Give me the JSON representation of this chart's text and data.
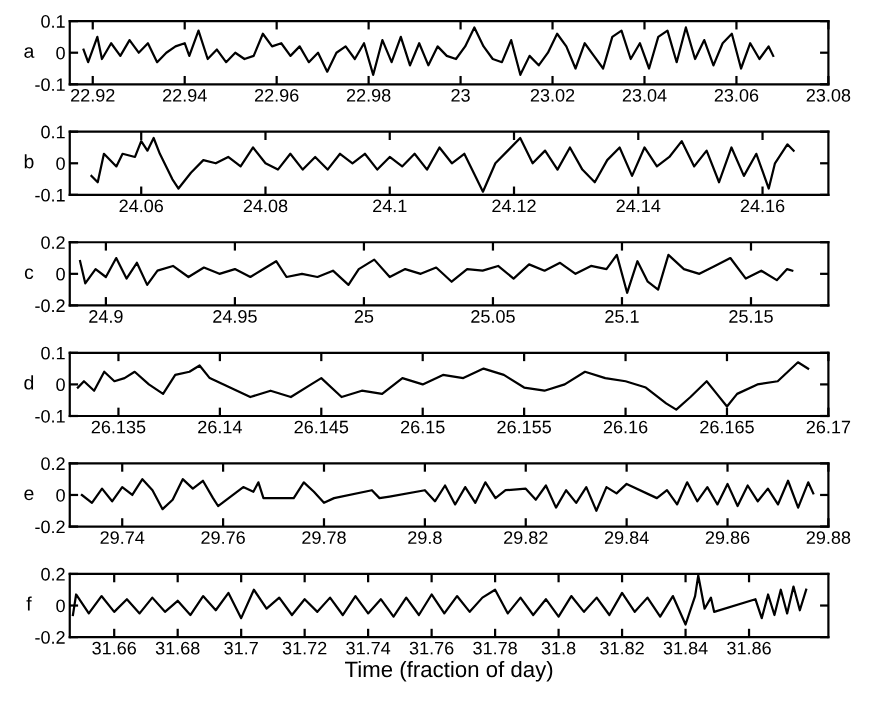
{
  "chart_data": [
    {
      "type": "line",
      "ylabel": "a",
      "xlim": [
        22.915,
        23.08
      ],
      "xticks": [
        22.92,
        22.94,
        22.96,
        22.98,
        23,
        23.02,
        23.04,
        23.06,
        23.08
      ],
      "ylim": [
        -0.1,
        0.1
      ],
      "yticks": [
        -0.1,
        0,
        0.1
      ],
      "series": [
        {
          "color": "#000000",
          "x": [
            22.918,
            22.919,
            22.921,
            22.922,
            22.924,
            22.926,
            22.928,
            22.93,
            22.932,
            22.934,
            22.936,
            22.938,
            22.94,
            22.941,
            22.943,
            22.945,
            22.947,
            22.949,
            22.951,
            22.953,
            22.955,
            22.957,
            22.959,
            22.961,
            22.963,
            22.965,
            22.967,
            22.969,
            22.971,
            22.973,
            22.975,
            22.977,
            22.979,
            22.981,
            22.983,
            22.985,
            22.987,
            22.989,
            22.991,
            22.993,
            22.995,
            22.997,
            22.999,
            23.001,
            23.003,
            23.005,
            23.007,
            23.009,
            23.011,
            23.013,
            23.015,
            23.017,
            23.019,
            23.021,
            23.023,
            23.025,
            23.027,
            23.029,
            23.031,
            23.033,
            23.035,
            23.037,
            23.039,
            23.041,
            23.043,
            23.045,
            23.047,
            23.049,
            23.051,
            23.053,
            23.055,
            23.057,
            23.059,
            23.061,
            23.063,
            23.065,
            23.067,
            23.068
          ],
          "values": [
            0.01,
            -0.03,
            0.05,
            -0.02,
            0.03,
            -0.01,
            0.04,
            0.0,
            0.03,
            -0.03,
            0.0,
            0.02,
            0.03,
            -0.01,
            0.07,
            -0.02,
            0.01,
            -0.03,
            0.0,
            -0.02,
            -0.01,
            0.06,
            0.02,
            0.03,
            -0.01,
            0.02,
            -0.03,
            0.0,
            -0.06,
            0.0,
            0.02,
            -0.02,
            0.03,
            -0.07,
            0.04,
            -0.03,
            0.05,
            -0.04,
            0.03,
            -0.04,
            0.02,
            -0.01,
            -0.02,
            0.02,
            0.08,
            0.02,
            -0.02,
            -0.03,
            0.04,
            -0.07,
            -0.01,
            -0.04,
            0.0,
            0.06,
            0.02,
            -0.05,
            0.03,
            -0.01,
            -0.05,
            0.05,
            0.07,
            -0.02,
            0.03,
            -0.05,
            0.05,
            0.07,
            -0.03,
            0.08,
            -0.02,
            0.04,
            -0.04,
            0.03,
            0.06,
            -0.05,
            0.03,
            -0.02,
            0.02,
            -0.01
          ]
        }
      ]
    },
    {
      "type": "line",
      "ylabel": "b",
      "xlim": [
        24.0485,
        24.1706
      ],
      "xticks": [
        24.06,
        24.08,
        24.1,
        24.12,
        24.14,
        24.16
      ],
      "ylim": [
        -0.1,
        0.1
      ],
      "yticks": [
        -0.1,
        0,
        0.1
      ],
      "series": [
        {
          "color": "#000000",
          "x": [
            24.052,
            24.053,
            24.054,
            24.056,
            24.057,
            24.059,
            24.06,
            24.061,
            24.062,
            24.063,
            24.065,
            24.066,
            24.068,
            24.07,
            24.072,
            24.074,
            24.076,
            24.078,
            24.08,
            24.082,
            24.084,
            24.086,
            24.088,
            24.09,
            24.092,
            24.094,
            24.096,
            24.098,
            24.1,
            24.102,
            24.104,
            24.106,
            24.108,
            24.11,
            24.112,
            24.114,
            24.115,
            24.117,
            24.119,
            24.121,
            24.123,
            24.125,
            24.127,
            24.129,
            24.131,
            24.133,
            24.135,
            24.137,
            24.139,
            24.141,
            24.143,
            24.145,
            24.147,
            24.149,
            24.151,
            24.153,
            24.155,
            24.157,
            24.159,
            24.161,
            24.162,
            24.164,
            24.165
          ],
          "values": [
            -0.04,
            -0.06,
            0.03,
            -0.01,
            0.03,
            0.02,
            0.07,
            0.04,
            0.08,
            0.03,
            -0.05,
            -0.08,
            -0.03,
            0.01,
            0.0,
            0.02,
            -0.01,
            0.05,
            0.0,
            -0.02,
            0.03,
            -0.02,
            0.02,
            -0.02,
            0.03,
            0.0,
            0.03,
            -0.02,
            0.02,
            -0.01,
            0.03,
            -0.02,
            0.05,
            0.0,
            0.03,
            -0.05,
            -0.09,
            0.0,
            0.04,
            0.08,
            0.0,
            0.04,
            -0.02,
            0.05,
            -0.02,
            -0.06,
            0.01,
            0.05,
            -0.04,
            0.05,
            -0.01,
            0.02,
            0.07,
            -0.01,
            0.04,
            -0.06,
            0.05,
            -0.04,
            0.03,
            -0.08,
            0.0,
            0.06,
            0.04
          ]
        }
      ]
    },
    {
      "type": "line",
      "ylabel": "c",
      "xlim": [
        24.886,
        25.18
      ],
      "xticks": [
        24.9,
        24.95,
        25,
        25.05,
        25.1,
        25.15
      ],
      "ylim": [
        -0.2,
        0.2
      ],
      "yticks": [
        -0.2,
        0,
        0.2
      ],
      "series": [
        {
          "color": "#000000",
          "x": [
            24.89,
            24.892,
            24.896,
            24.9,
            24.904,
            24.908,
            24.912,
            24.916,
            24.92,
            24.926,
            24.932,
            24.938,
            24.944,
            24.95,
            24.956,
            24.962,
            24.966,
            24.97,
            24.976,
            24.982,
            24.988,
            24.994,
            24.998,
            25.004,
            25.01,
            25.016,
            25.022,
            25.028,
            25.034,
            25.04,
            25.046,
            25.052,
            25.058,
            25.064,
            25.07,
            25.076,
            25.082,
            25.088,
            25.094,
            25.098,
            25.102,
            25.106,
            25.11,
            25.114,
            25.118,
            25.124,
            25.13,
            25.136,
            25.142,
            25.148,
            25.154,
            25.16,
            25.164,
            25.166
          ],
          "values": [
            0.08,
            -0.06,
            0.03,
            -0.02,
            0.1,
            -0.03,
            0.07,
            -0.07,
            0.02,
            0.05,
            -0.02,
            0.04,
            0.0,
            0.03,
            -0.02,
            0.04,
            0.08,
            -0.02,
            0.0,
            -0.02,
            0.02,
            -0.07,
            0.03,
            0.09,
            -0.02,
            0.03,
            0.0,
            0.04,
            -0.05,
            0.03,
            0.02,
            0.05,
            -0.03,
            0.06,
            0.02,
            0.07,
            0.0,
            0.05,
            0.03,
            0.12,
            -0.12,
            0.08,
            -0.05,
            -0.1,
            0.12,
            0.03,
            0.0,
            0.05,
            0.1,
            -0.03,
            0.02,
            -0.04,
            0.03,
            0.02
          ]
        }
      ]
    },
    {
      "type": "line",
      "ylabel": "d",
      "xlim": [
        26.1326,
        26.17
      ],
      "xticks": [
        26.135,
        26.14,
        26.145,
        26.15,
        26.155,
        26.16,
        26.165,
        26.17
      ],
      "ylim": [
        -0.1,
        0.1
      ],
      "yticks": [
        -0.1,
        0,
        0.1
      ],
      "series": [
        {
          "color": "#000000",
          "x": [
            26.133,
            26.1333,
            26.1338,
            26.1343,
            26.1348,
            26.1353,
            26.1358,
            26.1365,
            26.1372,
            26.1378,
            26.1385,
            26.139,
            26.1395,
            26.1405,
            26.1415,
            26.1425,
            26.1435,
            26.1445,
            26.145,
            26.146,
            26.147,
            26.148,
            26.149,
            26.15,
            26.151,
            26.152,
            26.153,
            26.154,
            26.155,
            26.156,
            26.157,
            26.158,
            26.159,
            26.16,
            26.161,
            26.162,
            26.1625,
            26.1632,
            26.164,
            26.1645,
            26.165,
            26.1655,
            26.1665,
            26.1675,
            26.168,
            26.1685,
            26.169
          ],
          "values": [
            -0.01,
            0.01,
            -0.02,
            0.04,
            0.01,
            0.02,
            0.04,
            0.0,
            -0.03,
            0.03,
            0.04,
            0.06,
            0.02,
            -0.01,
            -0.04,
            -0.02,
            -0.04,
            0.0,
            0.02,
            -0.04,
            -0.02,
            -0.03,
            0.02,
            0.0,
            0.03,
            0.02,
            0.05,
            0.03,
            -0.01,
            -0.02,
            0.0,
            0.04,
            0.02,
            0.01,
            -0.01,
            -0.06,
            -0.08,
            -0.04,
            0.01,
            -0.03,
            -0.07,
            -0.03,
            0.0,
            0.01,
            0.04,
            0.07,
            0.05
          ]
        }
      ]
    },
    {
      "type": "line",
      "ylabel": "e",
      "xlim": [
        29.7296,
        29.88
      ],
      "xticks": [
        29.74,
        29.76,
        29.78,
        29.8,
        29.82,
        29.84,
        29.86,
        29.88
      ],
      "ylim": [
        -0.2,
        0.2
      ],
      "yticks": [
        -0.2,
        0,
        0.2
      ],
      "series": [
        {
          "color": "#000000",
          "x": [
            29.732,
            29.734,
            29.736,
            29.738,
            29.74,
            29.742,
            29.744,
            29.746,
            29.748,
            29.75,
            29.752,
            29.754,
            29.756,
            29.758,
            29.759,
            29.764,
            29.766,
            29.767,
            29.768,
            29.774,
            29.776,
            29.778,
            29.78,
            29.782,
            29.7895,
            29.791,
            29.793,
            29.8,
            29.802,
            29.804,
            29.806,
            29.808,
            29.81,
            29.812,
            29.814,
            29.816,
            29.82,
            29.822,
            29.824,
            29.826,
            29.828,
            29.83,
            29.832,
            29.834,
            29.836,
            29.838,
            29.84,
            29.846,
            29.848,
            29.85,
            29.852,
            29.854,
            29.856,
            29.858,
            29.86,
            29.862,
            29.864,
            29.866,
            29.868,
            29.87,
            29.872,
            29.874,
            29.876,
            29.877
          ],
          "values": [
            0.0,
            -0.05,
            0.04,
            -0.04,
            0.05,
            0.0,
            0.1,
            0.03,
            -0.09,
            -0.03,
            0.1,
            0.04,
            0.09,
            -0.02,
            -0.07,
            0.05,
            0.02,
            0.08,
            -0.02,
            -0.02,
            0.08,
            0.02,
            -0.05,
            -0.02,
            0.03,
            -0.02,
            -0.01,
            0.03,
            -0.04,
            0.06,
            -0.06,
            0.05,
            -0.05,
            0.08,
            -0.02,
            0.03,
            0.04,
            -0.03,
            0.06,
            -0.08,
            0.03,
            -0.05,
            0.05,
            -0.1,
            0.05,
            0.01,
            0.07,
            -0.02,
            0.03,
            -0.06,
            0.08,
            -0.04,
            0.05,
            -0.06,
            0.07,
            -0.07,
            0.06,
            -0.04,
            0.04,
            -0.06,
            0.09,
            -0.08,
            0.08,
            0.01
          ]
        }
      ]
    },
    {
      "type": "line",
      "ylabel": "f",
      "xlabel": "Time (fraction of day)",
      "xlim": [
        31.646,
        31.885
      ],
      "xticks": [
        31.66,
        31.68,
        31.7,
        31.72,
        31.74,
        31.76,
        31.78,
        31.8,
        31.82,
        31.84,
        31.86
      ],
      "ylim": [
        -0.2,
        0.2
      ],
      "yticks": [
        -0.2,
        0,
        0.2
      ],
      "series": [
        {
          "color": "#000000",
          "x": [
            31.647,
            31.648,
            31.652,
            31.656,
            31.66,
            31.664,
            31.668,
            31.672,
            31.676,
            31.68,
            31.684,
            31.688,
            31.692,
            31.696,
            31.7,
            31.704,
            31.708,
            31.712,
            31.716,
            31.72,
            31.724,
            31.728,
            31.732,
            31.736,
            31.74,
            31.744,
            31.748,
            31.752,
            31.756,
            31.76,
            31.764,
            31.768,
            31.772,
            31.776,
            31.78,
            31.784,
            31.788,
            31.792,
            31.796,
            31.8,
            31.804,
            31.808,
            31.812,
            31.816,
            31.82,
            31.824,
            31.828,
            31.832,
            31.836,
            31.84,
            31.843,
            31.844,
            31.846,
            31.848,
            31.849,
            31.862,
            31.864,
            31.866,
            31.868,
            31.87,
            31.872,
            31.874,
            31.876,
            31.878
          ],
          "values": [
            -0.06,
            0.07,
            -0.05,
            0.06,
            -0.04,
            0.04,
            -0.05,
            0.05,
            -0.04,
            0.03,
            -0.06,
            0.06,
            -0.03,
            0.08,
            -0.08,
            0.1,
            -0.02,
            0.05,
            -0.06,
            0.04,
            -0.04,
            0.05,
            -0.06,
            0.06,
            -0.05,
            0.04,
            -0.07,
            0.05,
            -0.06,
            0.07,
            -0.05,
            0.06,
            -0.04,
            0.05,
            0.1,
            -0.05,
            0.05,
            -0.06,
            0.04,
            -0.07,
            0.06,
            -0.04,
            0.05,
            -0.06,
            0.08,
            -0.04,
            0.05,
            -0.07,
            0.06,
            -0.12,
            0.06,
            0.19,
            -0.02,
            0.05,
            -0.04,
            0.04,
            -0.08,
            0.07,
            -0.06,
            0.1,
            -0.05,
            0.12,
            -0.03,
            0.1
          ]
        }
      ]
    }
  ]
}
